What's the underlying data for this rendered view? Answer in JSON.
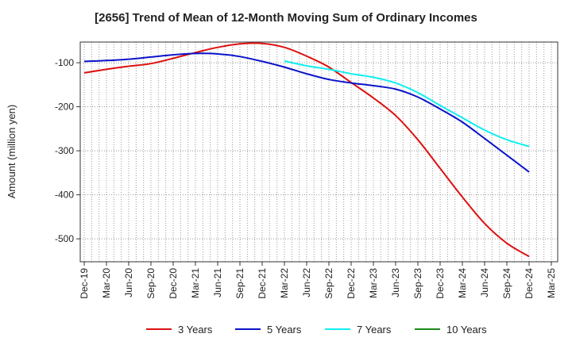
{
  "chart_data": {
    "type": "line",
    "title": "[2656]  Trend of Mean of 12-Month Moving Sum of Ordinary Incomes",
    "xlabel": "",
    "ylabel": "Amount (million yen)",
    "ylim": [
      -552,
      -53
    ],
    "y_ticks": [
      -100,
      -200,
      -300,
      -400,
      -500
    ],
    "y_tick_labels": [
      "-100",
      "-200",
      "-300",
      "-400",
      "-500"
    ],
    "categories": [
      "Dec-19",
      "Mar-20",
      "Jun-20",
      "Sep-20",
      "Dec-20",
      "Mar-21",
      "Jun-21",
      "Sep-21",
      "Dec-21",
      "Mar-22",
      "Jun-22",
      "Sep-22",
      "Dec-22",
      "Mar-23",
      "Jun-23",
      "Sep-23",
      "Dec-23",
      "Mar-24",
      "Jun-24",
      "Sep-24",
      "Dec-24",
      "Mar-25"
    ],
    "x_tick_labels": [
      "Dec-19",
      "Mar-20",
      "Jun-20",
      "Sep-20",
      "Dec-20",
      "Mar-21",
      "Jun-21",
      "Sep-21",
      "Dec-21",
      "Mar-22",
      "Jun-22",
      "Sep-22",
      "Dec-22",
      "Mar-23",
      "Jun-23",
      "Sep-23",
      "Dec-23",
      "Mar-24",
      "Jun-24",
      "Sep-24",
      "Dec-24",
      "Mar-25"
    ],
    "legend_position": "bottom",
    "grid": true,
    "series": [
      {
        "name": "3 Years",
        "color": "#dd1111",
        "values": [
          -123,
          -115,
          -108,
          -102,
          -90,
          -77,
          -65,
          -57,
          -56,
          -65,
          -85,
          -110,
          -145,
          -180,
          -220,
          -275,
          -340,
          -405,
          -465,
          -510,
          -540,
          null
        ]
      },
      {
        "name": "5 Years",
        "color": "#0a14c8",
        "values": [
          -97,
          -95,
          -92,
          -87,
          -82,
          -79,
          -80,
          -86,
          -97,
          -110,
          -125,
          -138,
          -146,
          -152,
          -160,
          -178,
          -205,
          -235,
          -272,
          -310,
          -348,
          null
        ]
      },
      {
        "name": "7 Years",
        "color": "#11eeee",
        "values": [
          null,
          null,
          null,
          null,
          null,
          null,
          null,
          null,
          null,
          -96,
          -107,
          -115,
          -125,
          -133,
          -146,
          -168,
          -197,
          -225,
          -253,
          -275,
          -290,
          null
        ]
      },
      {
        "name": "10 Years",
        "color": "#1a8a1a",
        "values": [
          null,
          null,
          null,
          null,
          null,
          null,
          null,
          null,
          null,
          null,
          null,
          null,
          null,
          null,
          null,
          null,
          null,
          null,
          null,
          null,
          null,
          null
        ]
      }
    ]
  }
}
